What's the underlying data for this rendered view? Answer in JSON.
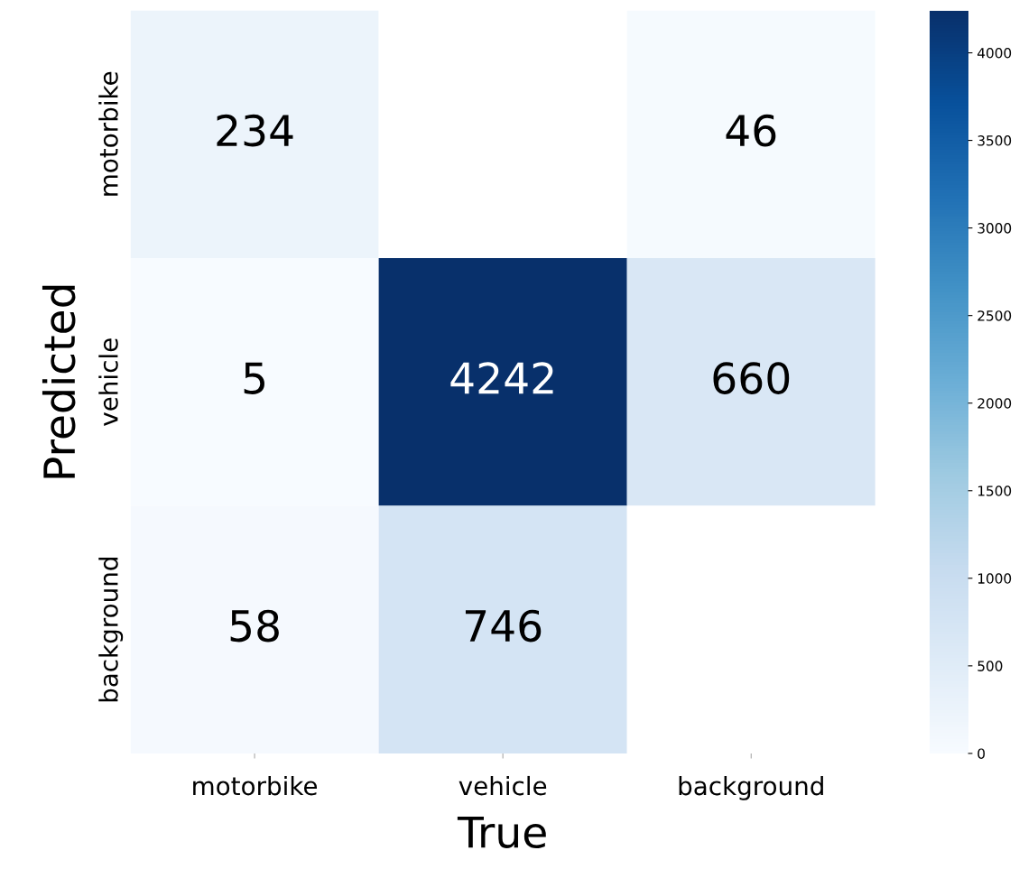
{
  "chart_data": {
    "type": "heatmap",
    "xlabel": "True",
    "ylabel": "Predicted",
    "categories": [
      "motorbike",
      "vehicle",
      "background"
    ],
    "y_categories": [
      "motorbike",
      "vehicle",
      "background"
    ],
    "cells": [
      [
        234,
        null,
        46
      ],
      [
        5,
        4242,
        660
      ],
      [
        58,
        746,
        null
      ]
    ],
    "data_labels": true,
    "clim": [
      0,
      4242
    ],
    "cticks": [
      0,
      500,
      1000,
      1500,
      2000,
      2500,
      3000,
      3500,
      4000
    ]
  }
}
